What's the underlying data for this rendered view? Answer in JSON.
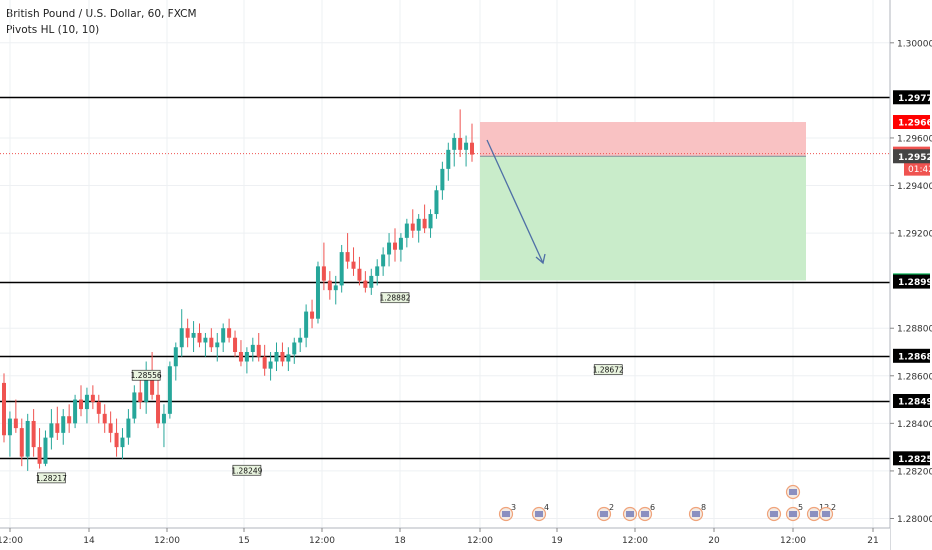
{
  "legend": {
    "symbol": "British Pound / U.S. Dollar, 60, FXCM",
    "indicator": "Pivots HL (10, 10)"
  },
  "chart_data": {
    "type": "candlestick",
    "ylim": [
      1.2796,
      1.3018
    ],
    "y_ticks": [
      "1.28000",
      "1.28200",
      "1.28400",
      "1.28600",
      "1.28800",
      "1.29200",
      "1.29400",
      "1.29600",
      "1.30000"
    ],
    "x_ticks": [
      "12:00",
      "14",
      "12:00",
      "15",
      "12:00",
      "18",
      "12:00",
      "19",
      "12:00",
      "20",
      "12:00",
      "21"
    ],
    "grid": true,
    "current_price": "1.29534",
    "countdown": "01:42",
    "horizontal_levels": [
      {
        "value": "1.29771"
      },
      {
        "value": "1.28996"
      },
      {
        "value": "1.28684"
      },
      {
        "value": "1.28494"
      },
      {
        "value": "1.28253"
      }
    ],
    "position": {
      "entry": "1.29523",
      "stop": "1.29667",
      "target": "1.29001"
    },
    "pivots": [
      {
        "label": "1.28882",
        "value": 1.28882,
        "bar": 66,
        "type": "high"
      },
      {
        "label": "1.28556",
        "value": 1.28556,
        "bar": 24,
        "type": "high"
      },
      {
        "label": "1.28672",
        "value": 1.28672,
        "bar": 102,
        "type": "low"
      },
      {
        "label": "1.28249",
        "value": 1.28249,
        "bar": 41,
        "type": "low"
      },
      {
        "label": "1.28217",
        "value": 1.28217,
        "bar": 8,
        "type": "low"
      }
    ],
    "events": [
      {
        "label": "3"
      },
      {
        "label": "4"
      },
      {
        "label": "2"
      },
      {
        "label": ""
      },
      {
        "label": "6"
      },
      {
        "label": "8"
      },
      {
        "label": ""
      },
      {
        "label": "5"
      },
      {
        "label": ""
      },
      {
        "label": "12"
      },
      {
        "label": "2"
      }
    ],
    "colors": {
      "up": "#26a69a",
      "down": "#ef5350",
      "stop_zone": "#f9c2c3",
      "target_zone": "#c9ecca",
      "arrow": "#4f6fa6",
      "level": "#000000"
    },
    "candles": [
      [
        1.2857,
        1.2861,
        1.2832,
        1.2835
      ],
      [
        1.2835,
        1.2845,
        1.2826,
        1.2842
      ],
      [
        1.2842,
        1.285,
        1.2836,
        1.2838
      ],
      [
        1.2838,
        1.2842,
        1.2822,
        1.2826
      ],
      [
        1.2826,
        1.2844,
        1.282,
        1.2841
      ],
      [
        1.2841,
        1.2846,
        1.2826,
        1.283
      ],
      [
        1.283,
        1.2838,
        1.2821,
        1.2823
      ],
      [
        1.2823,
        1.2837,
        1.2822,
        1.2834
      ],
      [
        1.2834,
        1.2846,
        1.2829,
        1.284
      ],
      [
        1.284,
        1.2847,
        1.2833,
        1.2836
      ],
      [
        1.2836,
        1.2846,
        1.2831,
        1.2843
      ],
      [
        1.2843,
        1.2848,
        1.2836,
        1.284
      ],
      [
        1.284,
        1.2852,
        1.2838,
        1.285
      ],
      [
        1.285,
        1.2856,
        1.2843,
        1.2846
      ],
      [
        1.2846,
        1.2855,
        1.284,
        1.2852
      ],
      [
        1.2852,
        1.2856,
        1.2846,
        1.2849
      ],
      [
        1.2849,
        1.2852,
        1.284,
        1.2844
      ],
      [
        1.2844,
        1.2848,
        1.2836,
        1.284
      ],
      [
        1.284,
        1.2845,
        1.2832,
        1.2836
      ],
      [
        1.2836,
        1.2842,
        1.2826,
        1.283
      ],
      [
        1.283,
        1.2838,
        1.2825,
        1.2834
      ],
      [
        1.2834,
        1.2846,
        1.2831,
        1.2842
      ],
      [
        1.2842,
        1.2856,
        1.284,
        1.2853
      ],
      [
        1.2853,
        1.286,
        1.2846,
        1.2849
      ],
      [
        1.2849,
        1.2866,
        1.2844,
        1.2862
      ],
      [
        1.2862,
        1.287,
        1.285,
        1.2852
      ],
      [
        1.2852,
        1.2858,
        1.2838,
        1.284
      ],
      [
        1.284,
        1.2848,
        1.283,
        1.2844
      ],
      [
        1.2844,
        1.2866,
        1.2842,
        1.2864
      ],
      [
        1.2864,
        1.2874,
        1.2858,
        1.2872
      ],
      [
        1.2872,
        1.2888,
        1.2868,
        1.288
      ],
      [
        1.288,
        1.2884,
        1.2872,
        1.2876
      ],
      [
        1.2876,
        1.2883,
        1.287,
        1.2878
      ],
      [
        1.2878,
        1.2882,
        1.2872,
        1.2874
      ],
      [
        1.2874,
        1.2878,
        1.2868,
        1.2876
      ],
      [
        1.2876,
        1.288,
        1.287,
        1.2872
      ],
      [
        1.2872,
        1.2878,
        1.2866,
        1.2874
      ],
      [
        1.2874,
        1.2882,
        1.287,
        1.288
      ],
      [
        1.288,
        1.2884,
        1.2874,
        1.2876
      ],
      [
        1.2876,
        1.2879,
        1.2868,
        1.287
      ],
      [
        1.287,
        1.2875,
        1.2864,
        1.2866
      ],
      [
        1.2866,
        1.2872,
        1.2861,
        1.287
      ],
      [
        1.287,
        1.2876,
        1.2866,
        1.2873
      ],
      [
        1.2873,
        1.2878,
        1.2866,
        1.2868
      ],
      [
        1.2868,
        1.2873,
        1.286,
        1.2863
      ],
      [
        1.2863,
        1.287,
        1.2858,
        1.2866
      ],
      [
        1.2866,
        1.2874,
        1.2862,
        1.287
      ],
      [
        1.287,
        1.2874,
        1.2864,
        1.2866
      ],
      [
        1.2866,
        1.2872,
        1.2862,
        1.2869
      ],
      [
        1.2869,
        1.2876,
        1.2865,
        1.2874
      ],
      [
        1.2874,
        1.288,
        1.287,
        1.2876
      ],
      [
        1.2876,
        1.289,
        1.2872,
        1.2887
      ],
      [
        1.2887,
        1.2892,
        1.288,
        1.2884
      ],
      [
        1.2884,
        1.2908,
        1.2882,
        1.2906
      ],
      [
        1.2906,
        1.2916,
        1.2896,
        1.29
      ],
      [
        1.29,
        1.2904,
        1.2892,
        1.2896
      ],
      [
        1.2896,
        1.2902,
        1.289,
        1.2898
      ],
      [
        1.2898,
        1.2915,
        1.2895,
        1.2912
      ],
      [
        1.2912,
        1.292,
        1.2905,
        1.2908
      ],
      [
        1.2908,
        1.2914,
        1.2902,
        1.2905
      ],
      [
        1.2905,
        1.291,
        1.2898,
        1.29
      ],
      [
        1.29,
        1.2904,
        1.2895,
        1.2897
      ],
      [
        1.2897,
        1.2905,
        1.2894,
        1.2902
      ],
      [
        1.2902,
        1.2909,
        1.2898,
        1.2906
      ],
      [
        1.2906,
        1.2914,
        1.2902,
        1.2911
      ],
      [
        1.2911,
        1.292,
        1.2906,
        1.2916
      ],
      [
        1.2916,
        1.2922,
        1.2908,
        1.2913
      ],
      [
        1.2913,
        1.292,
        1.2908,
        1.2918
      ],
      [
        1.2918,
        1.2926,
        1.2914,
        1.2924
      ],
      [
        1.2924,
        1.293,
        1.2918,
        1.2921
      ],
      [
        1.2921,
        1.2928,
        1.2916,
        1.2926
      ],
      [
        1.2926,
        1.2932,
        1.292,
        1.2922
      ],
      [
        1.2922,
        1.293,
        1.2918,
        1.2928
      ],
      [
        1.2928,
        1.294,
        1.2926,
        1.2938
      ],
      [
        1.2938,
        1.295,
        1.2934,
        1.2947
      ],
      [
        1.2947,
        1.2958,
        1.2942,
        1.2955
      ],
      [
        1.2955,
        1.2962,
        1.2948,
        1.296
      ],
      [
        1.296,
        1.2972,
        1.2952,
        1.2955
      ],
      [
        1.2955,
        1.2961,
        1.2948,
        1.2958
      ],
      [
        1.2958,
        1.2966,
        1.295,
        1.2953
      ]
    ]
  }
}
